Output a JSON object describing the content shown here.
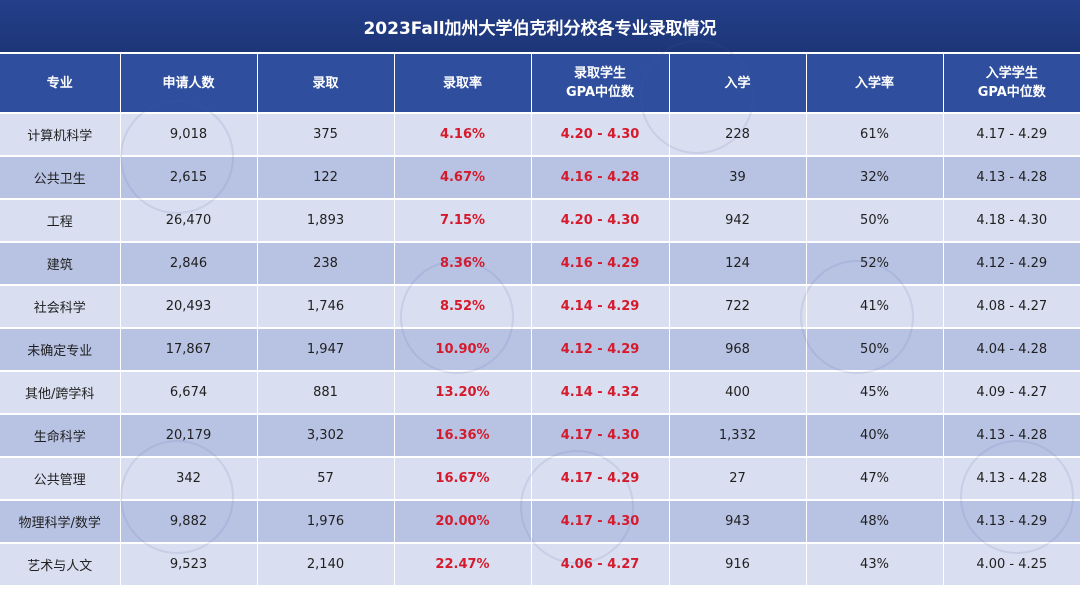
{
  "title": "2023Fall加州大学伯克利分校各专业录取情况",
  "columns": [
    [
      "专业"
    ],
    [
      "申请人数"
    ],
    [
      "录取"
    ],
    [
      "录取率"
    ],
    [
      "录取学生",
      "GPA中位数"
    ],
    [
      "入学"
    ],
    [
      "入学率"
    ],
    [
      "入学学生",
      "GPA中位数"
    ]
  ],
  "rows": [
    [
      "计算机科学",
      "9,018",
      "375",
      "4.16%",
      "4.20 - 4.30",
      "228",
      "61%",
      "4.17 - 4.29"
    ],
    [
      "公共卫生",
      "2,615",
      "122",
      "4.67%",
      "4.16 - 4.28",
      "39",
      "32%",
      "4.13 - 4.28"
    ],
    [
      "工程",
      "26,470",
      "1,893",
      "7.15%",
      "4.20 - 4.30",
      "942",
      "50%",
      "4.18 - 4.30"
    ],
    [
      "建筑",
      "2,846",
      "238",
      "8.36%",
      "4.16 - 4.29",
      "124",
      "52%",
      "4.12 - 4.29"
    ],
    [
      "社会科学",
      "20,493",
      "1,746",
      "8.52%",
      "4.14 - 4.29",
      "722",
      "41%",
      "4.08 - 4.27"
    ],
    [
      "未确定专业",
      "17,867",
      "1,947",
      "10.90%",
      "4.12 - 4.29",
      "968",
      "50%",
      "4.04 - 4.28"
    ],
    [
      "其他/跨学科",
      "6,674",
      "881",
      "13.20%",
      "4.14 - 4.32",
      "400",
      "45%",
      "4.09 - 4.27"
    ],
    [
      "生命科学",
      "20,179",
      "3,302",
      "16.36%",
      "4.17 - 4.30",
      "1,332",
      "40%",
      "4.13 - 4.28"
    ],
    [
      "公共管理",
      "342",
      "57",
      "16.67%",
      "4.17 - 4.29",
      "27",
      "47%",
      "4.13 - 4.28"
    ],
    [
      "物理科学/数学",
      "9,882",
      "1,976",
      "20.00%",
      "4.17 - 4.30",
      "943",
      "48%",
      "4.13 - 4.29"
    ],
    [
      "艺术与人文",
      "9,523",
      "2,140",
      "22.47%",
      "4.06 - 4.27",
      "916",
      "43%",
      "4.00 - 4.25"
    ]
  ],
  "colors": {
    "header_bg": "#2f4f9e",
    "title_bg": "#1d3678",
    "row_light": "#d9def0",
    "row_dark": "#b8c3e4",
    "highlight_text": "#d51a2c"
  }
}
